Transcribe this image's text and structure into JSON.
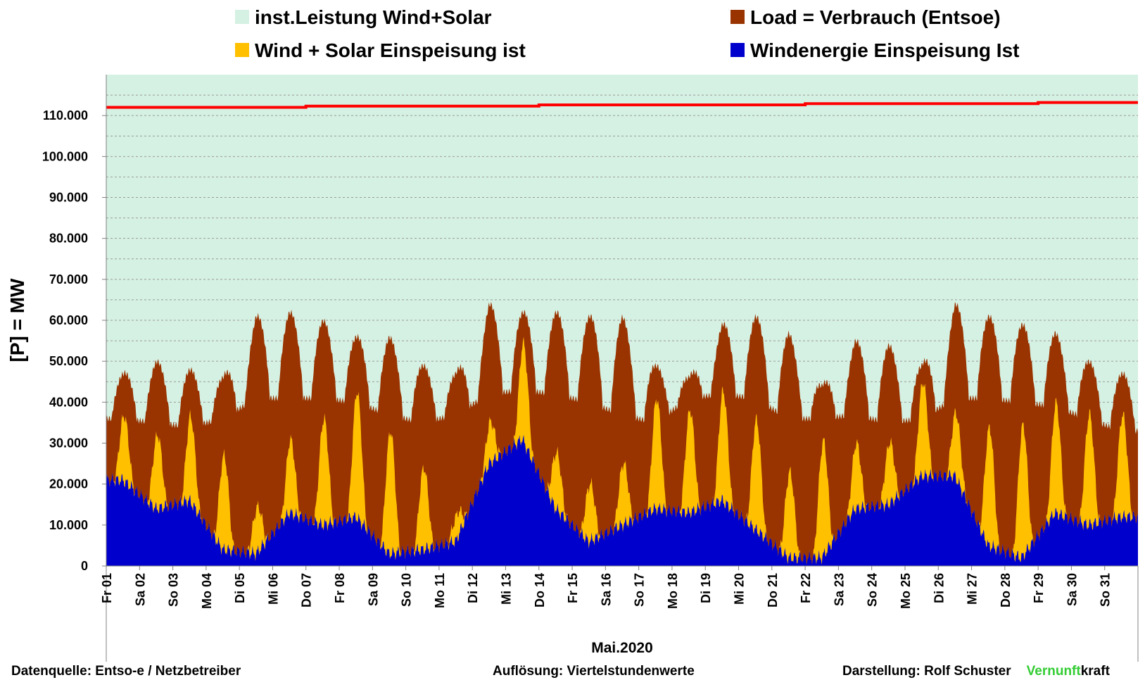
{
  "chart_data": {
    "type": "area",
    "ylabel": "[P] = MW",
    "xlabel": "Mai.2020",
    "ylim": [
      0,
      120000
    ],
    "yticks": [
      0,
      10000,
      20000,
      30000,
      40000,
      50000,
      60000,
      70000,
      80000,
      90000,
      100000,
      110000
    ],
    "ytick_labels": [
      "0",
      "10.000",
      "20.000",
      "30.000",
      "40.000",
      "50.000",
      "60.000",
      "70.000",
      "80.000",
      "90.000",
      "100.000",
      "110.000"
    ],
    "grid": true,
    "legend_position": "top",
    "categories": [
      "Fr 01",
      "Sa 02",
      "So 03",
      "Mo 04",
      "Di 05",
      "Mi 06",
      "Do 07",
      "Fr 08",
      "Sa 09",
      "So 10",
      "Mo 11",
      "Di 12",
      "Mi 13",
      "Do 14",
      "Fr 15",
      "Sa 16",
      "So 17",
      "Mo 18",
      "Di 19",
      "Mi 20",
      "Do 21",
      "Fr 22",
      "Sa 23",
      "So 24",
      "Mo 25",
      "Di 26",
      "Mi 27",
      "Do 28",
      "Fr 29",
      "Sa 30",
      "So 31"
    ],
    "legend": [
      {
        "label": "inst.Leistung Wind+Solar",
        "color": "#d5f1e3"
      },
      {
        "label": "Load =  Verbrauch (Entsoe)",
        "color": "#993300"
      },
      {
        "label": "Wind + Solar Einspeisung ist",
        "color": "#ffc000"
      },
      {
        "label": "Windenergie Einspeisung Ist",
        "color": "#0000cc"
      }
    ],
    "series": [
      {
        "name": "inst.Leistung Wind+Solar",
        "color": "#ff0000",
        "values": [
          112000,
          112000,
          112000,
          112000,
          112000,
          112000,
          112300,
          112300,
          112300,
          112300,
          112300,
          112300,
          112300,
          112600,
          112600,
          112600,
          112600,
          112600,
          112600,
          112600,
          112600,
          112900,
          112900,
          112900,
          112900,
          112900,
          112900,
          112900,
          113200,
          113200,
          113200
        ]
      },
      {
        "name": "Load =  Verbrauch (Entsoe)",
        "day_min": [
          36000,
          35000,
          34000,
          36000,
          41000,
          41000,
          41000,
          40000,
          37000,
          35000,
          37000,
          42000,
          43000,
          42000,
          40000,
          37000,
          35000,
          41000,
          42000,
          41000,
          36000,
          36000,
          37000,
          35000,
          36000,
          41000,
          41000,
          40000,
          39000,
          36000,
          33000
        ],
        "day_max": [
          47000,
          50000,
          48000,
          46000,
          61000,
          62000,
          60000,
          56000,
          56000,
          49000,
          47000,
          64000,
          62000,
          62000,
          61000,
          61000,
          49000,
          46000,
          59000,
          61000,
          57000,
          44000,
          55000,
          54000,
          49000,
          64000,
          61000,
          59000,
          57000,
          50000,
          47000
        ]
      },
      {
        "name": "Wind + Solar Einspeisung ist",
        "solar_peak": [
          16000,
          18000,
          21000,
          23000,
          11000,
          18000,
          26000,
          31000,
          30000,
          20000,
          6000,
          10000,
          24000,
          14000,
          14000,
          15000,
          27000,
          25000,
          27000,
          27000,
          21000,
          28000,
          16000,
          15000,
          23000,
          16000,
          29000,
          32000,
          27000,
          27000,
          25000
        ]
      },
      {
        "name": "Windenergie Einspeisung Ist",
        "values": [
          21000,
          14000,
          16000,
          4000,
          3000,
          13000,
          10000,
          12000,
          3000,
          4000,
          6000,
          25000,
          31000,
          14000,
          6000,
          10000,
          14000,
          13000,
          16000,
          9000,
          2000,
          2000,
          14000,
          15000,
          22000,
          22000,
          5000,
          2000,
          13000,
          10000,
          12000
        ]
      }
    ]
  },
  "footer": {
    "source": "Datenquelle:  Entso-e  / Netzbetreiber",
    "resolution": "Auflösung: Viertelstundenwerte",
    "author": "Darstellung:  Rolf Schuster",
    "brand_green": "Vernunft",
    "brand_rest": "kraft",
    "brand_color": "#33cc33"
  }
}
